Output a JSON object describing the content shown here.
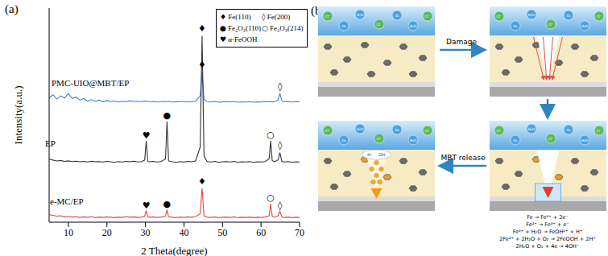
{
  "panel_labels": [
    "(a)",
    "(b)"
  ],
  "chart_data": {
    "type": "line",
    "x_label": "2 Theta(degree)",
    "y_label": "Intensity(a.u.)",
    "xlim": [
      5,
      70
    ],
    "xticks": [
      10,
      20,
      30,
      40,
      50,
      60,
      70
    ],
    "ylim": [
      0,
      100
    ],
    "yticks": [],
    "tick_labels": "x",
    "grid": false,
    "legend": "upper right",
    "x": [
      5,
      6,
      7,
      8,
      9,
      10,
      11,
      12,
      13,
      14,
      15,
      16,
      17,
      18,
      19,
      20,
      21,
      22,
      23,
      24,
      25,
      26,
      27,
      28,
      29,
      29.8,
      30.2,
      30.6,
      31,
      32,
      33,
      34,
      35.2,
      35.6,
      36,
      37,
      38,
      39,
      40,
      41,
      42,
      43,
      44.2,
      44.7,
      45.2,
      46,
      47,
      48,
      49,
      50,
      51,
      52,
      53,
      54,
      55,
      56,
      57,
      58,
      59,
      60,
      61,
      62.1,
      62.5,
      62.9,
      63.5,
      64.4,
      64.9,
      65.4,
      66,
      67,
      68,
      69,
      70
    ],
    "series": [
      {
        "name": "PMC-UIO@MBT/EP",
        "color": "#3b7dd8",
        "values": [
          58,
          59.5,
          57.5,
          59,
          58,
          60,
          57.8,
          58.5,
          57,
          57.8,
          56.5,
          57.2,
          56.4,
          57,
          56.2,
          56.8,
          56.3,
          56.6,
          56.1,
          56.5,
          56.2,
          56.7,
          56.3,
          56.5,
          56.2,
          56.6,
          56.3,
          56.5,
          56.2,
          56.4,
          56.1,
          56.3,
          56.4,
          56.2,
          56.5,
          56.1,
          56.3,
          56.2,
          56.4,
          56.1,
          56.3,
          56.5,
          59,
          70,
          57.5,
          56.3,
          56.1,
          56.4,
          56.0,
          56.2,
          56.3,
          56.1,
          56.4,
          56.0,
          56.2,
          56.1,
          56.3,
          56.0,
          56.2,
          56.1,
          56.3,
          56.2,
          56.4,
          56.1,
          56.3,
          57,
          60,
          56.8,
          56.2,
          56.4,
          56.1,
          56.3,
          56.2
        ]
      },
      {
        "name": "EP",
        "color": "#333333",
        "values": [
          29.5,
          29,
          28.6,
          28.8,
          28.4,
          28.6,
          28.3,
          28.5,
          28.2,
          28.4,
          28.1,
          28.5,
          28.2,
          28.3,
          28.1,
          28.4,
          28.2,
          28.0,
          28.3,
          28.1,
          28.4,
          28.2,
          28.5,
          28.1,
          28.3,
          29,
          38,
          28.5,
          28.2,
          28.4,
          28.1,
          28.3,
          29.5,
          47,
          28.6,
          28.2,
          28.0,
          28.3,
          28.1,
          28.4,
          28.2,
          28.6,
          35,
          87,
          31,
          28.3,
          28.1,
          28.4,
          28.0,
          28.2,
          28.3,
          28.1,
          28.4,
          28.0,
          28.2,
          28.1,
          28.3,
          28.0,
          28.2,
          28.1,
          28.3,
          29.5,
          38,
          28.8,
          28.2,
          29,
          32.5,
          28.4,
          28.1,
          28.3,
          28.0,
          28.2,
          28.1
        ]
      },
      {
        "name": "e-MC/EP",
        "color": "#e8473f",
        "values": [
          3.5,
          3.2,
          2.8,
          3.0,
          2.5,
          2.7,
          2.4,
          2.6,
          2.2,
          2.5,
          2.3,
          2.6,
          2.1,
          2.4,
          2.2,
          2.5,
          2.3,
          2.1,
          2.4,
          2.2,
          2.6,
          2.3,
          2.5,
          2.2,
          2.4,
          2.8,
          5.5,
          2.6,
          2.3,
          2.5,
          2.2,
          2.4,
          2.8,
          5.8,
          2.5,
          2.3,
          2.1,
          2.4,
          2.2,
          2.5,
          2.3,
          2.6,
          4,
          16,
          3,
          2.4,
          2.2,
          2.5,
          2.1,
          2.3,
          2.4,
          2.2,
          2.5,
          2.1,
          2.3,
          2.2,
          2.4,
          2.1,
          2.3,
          2.2,
          2.4,
          3,
          8.5,
          2.8,
          2.3,
          3,
          5,
          2.5,
          2.2,
          2.4,
          2.1,
          2.3,
          2.2
        ]
      }
    ],
    "legend_items": [
      {
        "symbol": "♦",
        "label": "Fe(110)"
      },
      {
        "symbol": "◊",
        "label": "Fe(200)"
      },
      {
        "symbol": "●",
        "label": "Fe₂O₃(110)"
      },
      {
        "symbol": "○",
        "label": "Fe₂O₃(214)"
      },
      {
        "symbol": "♥",
        "label": "α-FeOOH"
      }
    ],
    "peak_marks": [
      {
        "x": 44.7,
        "y": 73.5,
        "label": "♦"
      },
      {
        "x": 64.9,
        "y": 63.5,
        "label": "◊"
      },
      {
        "x": 30.2,
        "y": 40.5,
        "label": "♥"
      },
      {
        "x": 35.6,
        "y": 50,
        "label": "●"
      },
      {
        "x": 44.7,
        "y": 90.5,
        "label": "♦"
      },
      {
        "x": 62.5,
        "y": 41,
        "label": "○"
      },
      {
        "x": 64.9,
        "y": 36,
        "label": "◊"
      },
      {
        "x": 30.2,
        "y": 8,
        "label": "♥"
      },
      {
        "x": 35.6,
        "y": 8.5,
        "label": "●"
      },
      {
        "x": 44.7,
        "y": 19,
        "label": "♦"
      },
      {
        "x": 62.5,
        "y": 11.5,
        "label": "○"
      },
      {
        "x": 64.9,
        "y": 8,
        "label": "◊"
      }
    ]
  },
  "diagram": {
    "steps": [
      "Damage",
      "MBT release"
    ],
    "ions": [
      "Cl⁻",
      "O₂",
      "H₂O"
    ],
    "local_ions": [
      "H⁺",
      "OH⁻"
    ],
    "reactions": [
      "Fe → Fe²⁺ + 2e⁻",
      "Fe²⁺ → Fe³⁺ + e⁻",
      "Fe³⁺ + H₂O → FeOH²⁺ + H⁺",
      "2Fe²⁺ + 2H₂O + O₂ → 2FeOOH + 2H⁺",
      "2H₂O + O₂ + 4e → 4OH⁻"
    ]
  }
}
